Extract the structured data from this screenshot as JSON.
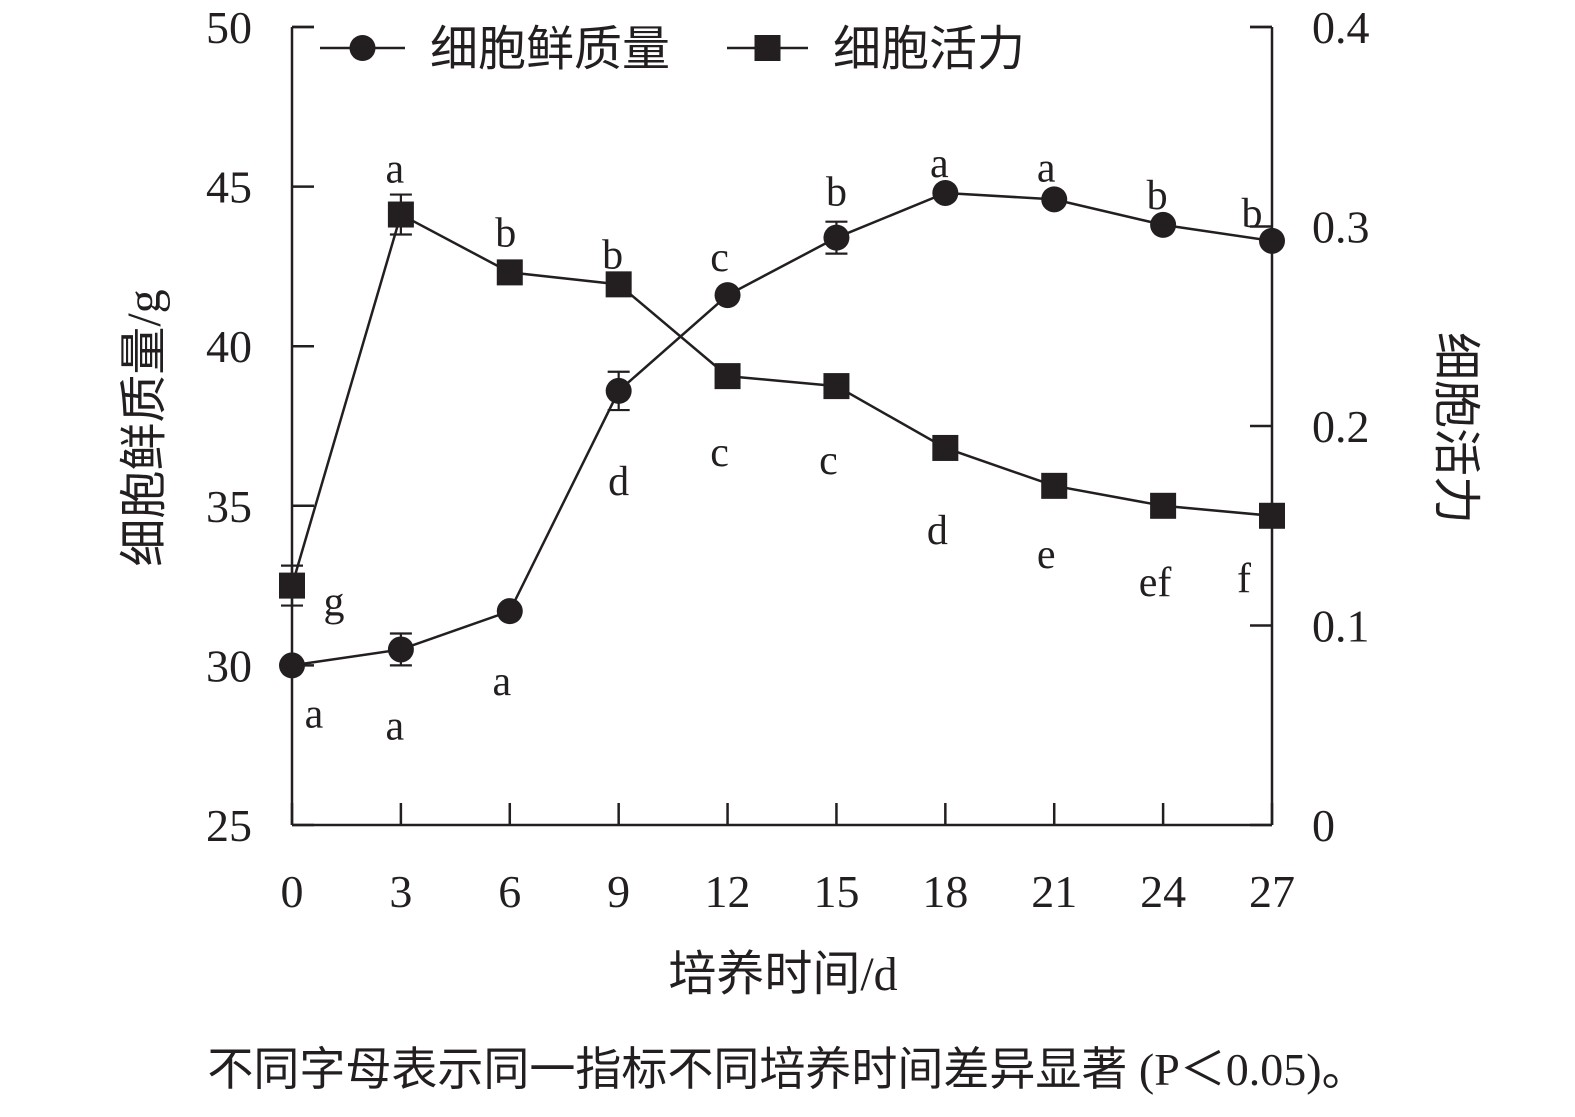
{
  "chart_data": {
    "type": "line",
    "x": [
      0,
      3,
      6,
      9,
      12,
      15,
      18,
      21,
      24,
      27
    ],
    "xlabel": "培养时间/d",
    "xticks": [
      "0",
      "3",
      "6",
      "9",
      "12",
      "15",
      "18",
      "21",
      "24",
      "27"
    ],
    "xlim": [
      0,
      27
    ],
    "ylabel_left": "细胞鲜质量/g",
    "ylim_left": [
      25,
      50
    ],
    "yticks_left": [
      "25",
      "30",
      "35",
      "40",
      "45",
      "50"
    ],
    "ylabel_right": "细胞活力",
    "ylim_right": [
      0,
      0.4
    ],
    "yticks_right": [
      "0",
      "0.1",
      "0.2",
      "0.3",
      "0.4"
    ],
    "legend_position": "top",
    "series": [
      {
        "name": "细胞鲜质量",
        "axis": "left",
        "marker": "circle",
        "values": [
          30.0,
          30.5,
          31.7,
          38.6,
          41.6,
          43.4,
          44.8,
          44.6,
          43.8,
          43.3
        ],
        "errors": [
          0,
          0.5,
          0,
          0.6,
          0,
          0.5,
          0,
          0,
          0,
          0
        ],
        "labels": [
          "a",
          "a",
          "a",
          "d",
          "c",
          "b",
          "a",
          "a",
          "b",
          "b"
        ]
      },
      {
        "name": "细胞活力",
        "axis": "right",
        "marker": "square",
        "values": [
          0.12,
          0.306,
          0.277,
          0.271,
          0.225,
          0.22,
          0.189,
          0.17,
          0.16,
          0.155
        ],
        "errors": [
          0.01,
          0.01,
          0,
          0,
          0,
          0,
          0,
          0,
          0,
          0
        ],
        "labels": [
          "g",
          "a",
          "b",
          "b",
          "c",
          "c",
          "d",
          "e",
          "ef",
          "f"
        ]
      }
    ]
  },
  "caption": "不同字母表示同一指标不同培养时间差异显著 (P＜0.05)。",
  "colors": {
    "ink": "#231f20",
    "background": "#ffffff"
  }
}
